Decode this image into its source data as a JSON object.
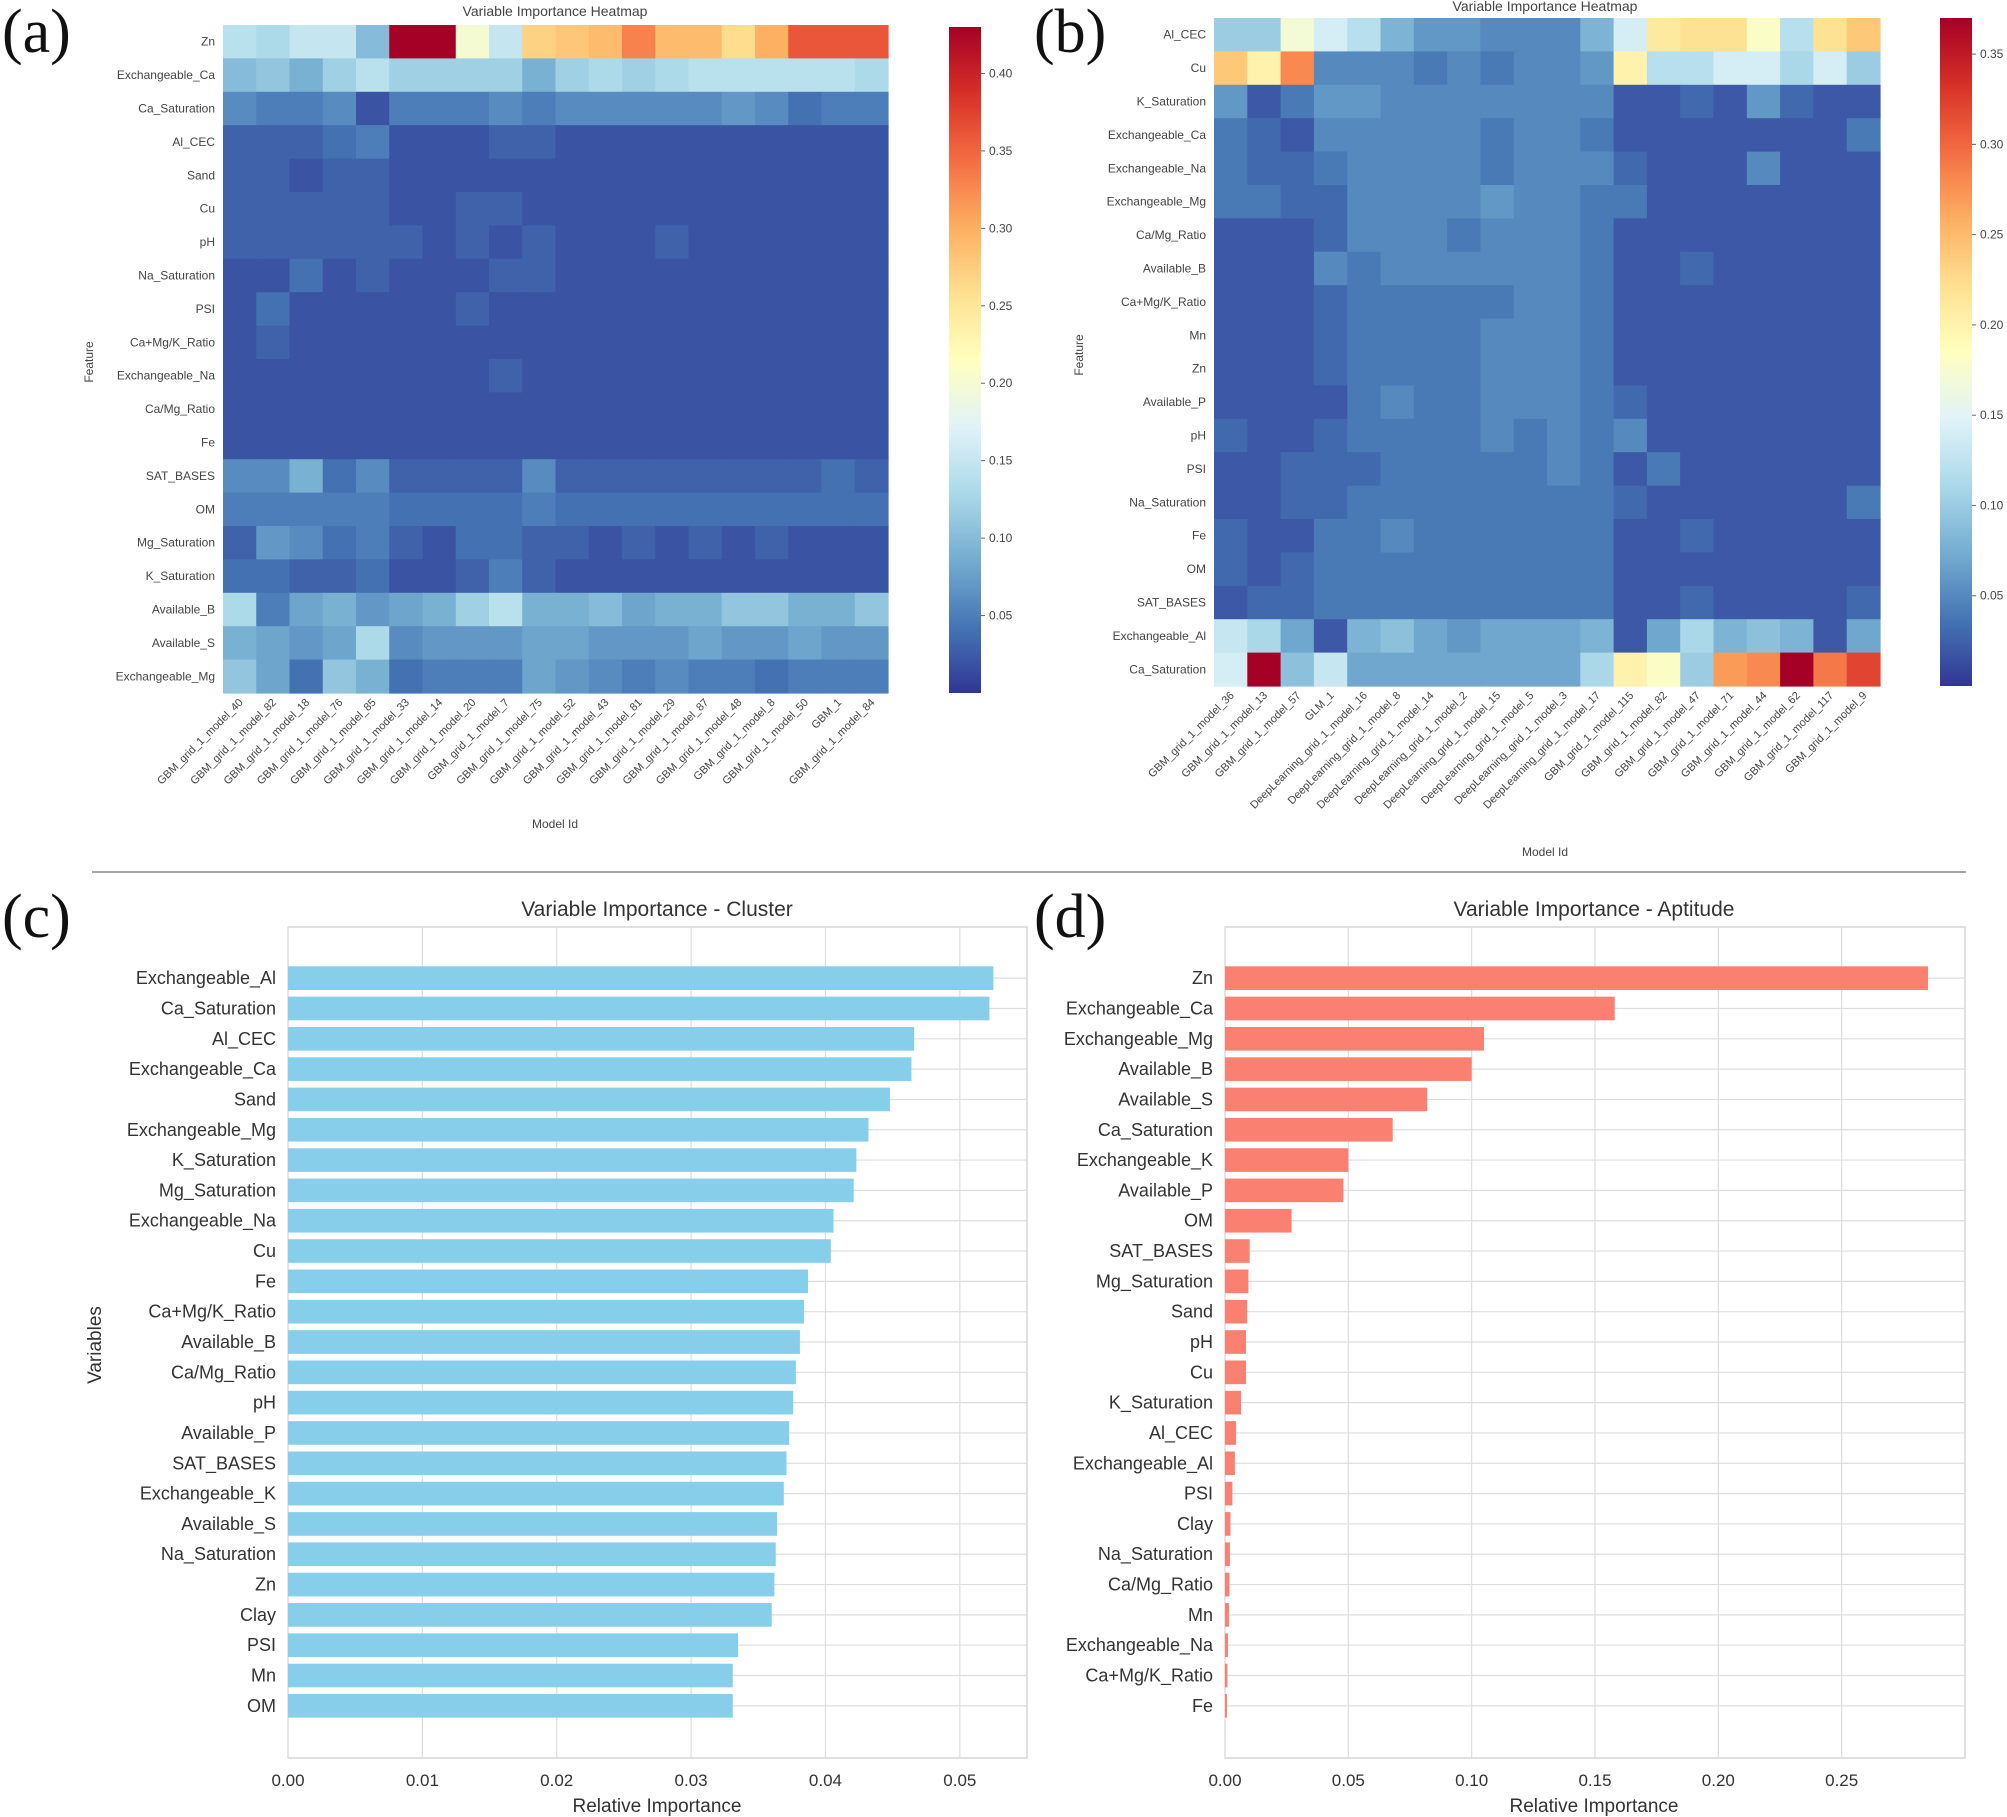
{
  "figure": {
    "panel_labels": [
      "(a)",
      "(b)",
      "(c)",
      "(d)"
    ],
    "colors": {
      "cluster_bar": "#87ceeb",
      "aptitude_bar": "#fa8072",
      "divider": "#888888",
      "heatmap_colormap": "RdYlBu_r"
    }
  },
  "chart_data": [
    {
      "type": "heatmap",
      "panel": "(a)",
      "title": "Variable Importance Heatmap",
      "xlabel": "Model Id",
      "ylabel": "Feature",
      "colorbar_ticks": [
        "0.05",
        "0.10",
        "0.15",
        "0.20",
        "0.25",
        "0.30",
        "0.35",
        "0.40"
      ],
      "colorbar_range": [
        0.0,
        0.43
      ],
      "y_categories": [
        "Zn",
        "Exchangeable_Ca",
        "Ca_Saturation",
        "Al_CEC",
        "Sand",
        "Cu",
        "pH",
        "Na_Saturation",
        "PSI",
        "Ca+Mg/K_Ratio",
        "Exchangeable_Na",
        "Ca/Mg_Ratio",
        "Fe",
        "SAT_BASES",
        "OM",
        "Mg_Saturation",
        "K_Saturation",
        "Available_B",
        "Available_S",
        "Exchangeable_Mg"
      ],
      "x_categories": [
        "GBM_grid_1_model_40",
        "GBM_grid_1_model_82",
        "GBM_grid_1_model_18",
        "GBM_grid_1_model_76",
        "GBM_grid_1_model_85",
        "GBM_grid_1_model_33",
        "GBM_grid_1_model_14",
        "GBM_grid_1_model_20",
        "GBM_grid_1_model_7",
        "GBM_grid_1_model_75",
        "GBM_grid_1_model_52",
        "GBM_grid_1_model_43",
        "GBM_grid_1_model_81",
        "GBM_grid_1_model_29",
        "GBM_grid_1_model_87",
        "GBM_grid_1_model_48",
        "GBM_grid_1_model_8",
        "GBM_grid_1_model_50",
        "GBM_1",
        "GBM_grid_1_model_84"
      ],
      "values": [
        [
          0.14,
          0.13,
          0.15,
          0.15,
          0.1,
          0.43,
          0.43,
          0.2,
          0.15,
          0.27,
          0.28,
          0.29,
          0.33,
          0.29,
          0.29,
          0.26,
          0.3,
          0.36,
          0.36,
          0.36
        ],
        [
          0.1,
          0.11,
          0.09,
          0.12,
          0.14,
          0.12,
          0.12,
          0.12,
          0.12,
          0.09,
          0.12,
          0.13,
          0.12,
          0.13,
          0.14,
          0.14,
          0.14,
          0.14,
          0.14,
          0.13
        ],
        [
          0.06,
          0.05,
          0.05,
          0.06,
          0.02,
          0.05,
          0.05,
          0.05,
          0.06,
          0.05,
          0.06,
          0.06,
          0.06,
          0.06,
          0.06,
          0.07,
          0.06,
          0.04,
          0.05,
          0.05
        ],
        [
          0.03,
          0.03,
          0.03,
          0.04,
          0.05,
          0.02,
          0.02,
          0.02,
          0.03,
          0.03,
          0.02,
          0.02,
          0.02,
          0.02,
          0.02,
          0.02,
          0.02,
          0.02,
          0.02,
          0.02
        ],
        [
          0.03,
          0.03,
          0.02,
          0.03,
          0.03,
          0.02,
          0.02,
          0.02,
          0.02,
          0.02,
          0.02,
          0.02,
          0.02,
          0.02,
          0.02,
          0.02,
          0.02,
          0.02,
          0.02,
          0.02
        ],
        [
          0.03,
          0.03,
          0.03,
          0.03,
          0.03,
          0.02,
          0.02,
          0.03,
          0.03,
          0.02,
          0.02,
          0.02,
          0.02,
          0.02,
          0.02,
          0.02,
          0.02,
          0.02,
          0.02,
          0.02
        ],
        [
          0.03,
          0.03,
          0.03,
          0.03,
          0.03,
          0.03,
          0.02,
          0.03,
          0.02,
          0.03,
          0.02,
          0.02,
          0.02,
          0.03,
          0.02,
          0.02,
          0.02,
          0.02,
          0.02,
          0.02
        ],
        [
          0.02,
          0.02,
          0.04,
          0.02,
          0.03,
          0.02,
          0.02,
          0.02,
          0.03,
          0.03,
          0.02,
          0.02,
          0.02,
          0.02,
          0.02,
          0.02,
          0.02,
          0.02,
          0.02,
          0.02
        ],
        [
          0.02,
          0.04,
          0.02,
          0.02,
          0.02,
          0.02,
          0.02,
          0.03,
          0.02,
          0.02,
          0.02,
          0.02,
          0.02,
          0.02,
          0.02,
          0.02,
          0.02,
          0.02,
          0.02,
          0.02
        ],
        [
          0.02,
          0.03,
          0.02,
          0.02,
          0.02,
          0.02,
          0.02,
          0.02,
          0.02,
          0.02,
          0.02,
          0.02,
          0.02,
          0.02,
          0.02,
          0.02,
          0.02,
          0.02,
          0.02,
          0.02
        ],
        [
          0.02,
          0.02,
          0.02,
          0.02,
          0.02,
          0.02,
          0.02,
          0.02,
          0.03,
          0.02,
          0.02,
          0.02,
          0.02,
          0.02,
          0.02,
          0.02,
          0.02,
          0.02,
          0.02,
          0.02
        ],
        [
          0.02,
          0.02,
          0.02,
          0.02,
          0.02,
          0.02,
          0.02,
          0.02,
          0.02,
          0.02,
          0.02,
          0.02,
          0.02,
          0.02,
          0.02,
          0.02,
          0.02,
          0.02,
          0.02,
          0.02
        ],
        [
          0.02,
          0.02,
          0.02,
          0.02,
          0.02,
          0.02,
          0.02,
          0.02,
          0.02,
          0.02,
          0.02,
          0.02,
          0.02,
          0.02,
          0.02,
          0.02,
          0.02,
          0.02,
          0.02,
          0.02
        ],
        [
          0.06,
          0.06,
          0.09,
          0.04,
          0.06,
          0.03,
          0.03,
          0.03,
          0.03,
          0.06,
          0.03,
          0.03,
          0.03,
          0.03,
          0.03,
          0.03,
          0.03,
          0.03,
          0.04,
          0.03
        ],
        [
          0.05,
          0.05,
          0.05,
          0.05,
          0.05,
          0.04,
          0.04,
          0.04,
          0.04,
          0.05,
          0.04,
          0.04,
          0.04,
          0.04,
          0.04,
          0.04,
          0.04,
          0.04,
          0.04,
          0.04
        ],
        [
          0.03,
          0.07,
          0.06,
          0.04,
          0.05,
          0.03,
          0.02,
          0.04,
          0.04,
          0.03,
          0.03,
          0.02,
          0.03,
          0.02,
          0.03,
          0.02,
          0.03,
          0.02,
          0.02,
          0.02
        ],
        [
          0.04,
          0.04,
          0.03,
          0.03,
          0.04,
          0.02,
          0.02,
          0.03,
          0.05,
          0.03,
          0.02,
          0.02,
          0.02,
          0.02,
          0.02,
          0.02,
          0.02,
          0.02,
          0.02,
          0.02
        ],
        [
          0.13,
          0.05,
          0.08,
          0.09,
          0.07,
          0.08,
          0.09,
          0.12,
          0.14,
          0.09,
          0.09,
          0.1,
          0.08,
          0.09,
          0.09,
          0.11,
          0.11,
          0.09,
          0.09,
          0.11
        ],
        [
          0.09,
          0.08,
          0.07,
          0.08,
          0.13,
          0.06,
          0.07,
          0.07,
          0.07,
          0.08,
          0.08,
          0.07,
          0.07,
          0.07,
          0.08,
          0.07,
          0.07,
          0.08,
          0.07,
          0.07
        ],
        [
          0.11,
          0.08,
          0.04,
          0.11,
          0.09,
          0.04,
          0.05,
          0.05,
          0.05,
          0.08,
          0.07,
          0.06,
          0.05,
          0.06,
          0.05,
          0.05,
          0.04,
          0.05,
          0.05,
          0.05
        ]
      ]
    },
    {
      "type": "heatmap",
      "panel": "(b)",
      "title": "Variable Importance Heatmap",
      "xlabel": "Model Id",
      "ylabel": "Feature",
      "colorbar_ticks": [
        "0.05",
        "0.10",
        "0.15",
        "0.20",
        "0.25",
        "0.30",
        "0.35"
      ],
      "colorbar_range": [
        0.0,
        0.37
      ],
      "y_categories": [
        "Al_CEC",
        "Cu",
        "K_Saturation",
        "Exchangeable_Ca",
        "Exchangeable_Na",
        "Exchangeable_Mg",
        "Ca/Mg_Ratio",
        "Available_B",
        "Ca+Mg/K_Ratio",
        "Mn",
        "Zn",
        "Available_P",
        "pH",
        "PSI",
        "Na_Saturation",
        "Fe",
        "OM",
        "SAT_BASES",
        "Exchangeable_Al",
        "Ca_Saturation"
      ],
      "x_categories": [
        "GBM_grid_1_model_36",
        "GBM_grid_1_model_13",
        "GBM_grid_1_model_57",
        "GLM_1",
        "DeepLearning_grid_1_model_16",
        "DeepLearning_grid_1_model_8",
        "DeepLearning_grid_1_model_14",
        "DeepLearning_grid_1_model_2",
        "DeepLearning_grid_1_model_15",
        "DeepLearning_grid_1_model_5",
        "DeepLearning_grid_1_model_3",
        "DeepLearning_grid_1_model_17",
        "GBM_grid_1_model_115",
        "GBM_grid_1_model_82",
        "GBM_grid_1_model_47",
        "GBM_grid_1_model_71",
        "GBM_grid_1_model_44",
        "GBM_grid_1_model_62",
        "GBM_grid_1_model_117",
        "GBM_grid_1_model_9"
      ],
      "values": [
        [
          0.1,
          0.1,
          0.17,
          0.14,
          0.12,
          0.08,
          0.06,
          0.06,
          0.05,
          0.05,
          0.05,
          0.08,
          0.14,
          0.21,
          0.22,
          0.22,
          0.18,
          0.12,
          0.22,
          0.24
        ],
        [
          0.24,
          0.2,
          0.28,
          0.05,
          0.05,
          0.05,
          0.04,
          0.05,
          0.04,
          0.05,
          0.05,
          0.06,
          0.2,
          0.12,
          0.12,
          0.14,
          0.14,
          0.11,
          0.14,
          0.1
        ],
        [
          0.06,
          0.02,
          0.04,
          0.06,
          0.06,
          0.05,
          0.05,
          0.05,
          0.05,
          0.05,
          0.05,
          0.05,
          0.02,
          0.02,
          0.03,
          0.02,
          0.06,
          0.03,
          0.02,
          0.02
        ],
        [
          0.04,
          0.03,
          0.02,
          0.05,
          0.05,
          0.05,
          0.05,
          0.05,
          0.04,
          0.05,
          0.05,
          0.04,
          0.02,
          0.02,
          0.02,
          0.02,
          0.02,
          0.02,
          0.02,
          0.04
        ],
        [
          0.04,
          0.03,
          0.03,
          0.04,
          0.05,
          0.05,
          0.05,
          0.05,
          0.04,
          0.05,
          0.05,
          0.05,
          0.03,
          0.02,
          0.02,
          0.02,
          0.05,
          0.02,
          0.02,
          0.02
        ],
        [
          0.04,
          0.04,
          0.03,
          0.03,
          0.05,
          0.05,
          0.05,
          0.05,
          0.06,
          0.05,
          0.05,
          0.04,
          0.04,
          0.02,
          0.02,
          0.02,
          0.02,
          0.02,
          0.02,
          0.02
        ],
        [
          0.02,
          0.02,
          0.02,
          0.03,
          0.05,
          0.05,
          0.05,
          0.04,
          0.05,
          0.05,
          0.05,
          0.04,
          0.02,
          0.02,
          0.02,
          0.02,
          0.02,
          0.02,
          0.02,
          0.02
        ],
        [
          0.02,
          0.02,
          0.02,
          0.05,
          0.04,
          0.05,
          0.05,
          0.05,
          0.05,
          0.05,
          0.05,
          0.04,
          0.02,
          0.02,
          0.03,
          0.02,
          0.02,
          0.02,
          0.02,
          0.02
        ],
        [
          0.02,
          0.02,
          0.02,
          0.03,
          0.04,
          0.04,
          0.04,
          0.04,
          0.04,
          0.05,
          0.05,
          0.04,
          0.02,
          0.02,
          0.02,
          0.02,
          0.02,
          0.02,
          0.02,
          0.02
        ],
        [
          0.02,
          0.02,
          0.02,
          0.03,
          0.04,
          0.04,
          0.04,
          0.04,
          0.05,
          0.05,
          0.05,
          0.04,
          0.02,
          0.02,
          0.02,
          0.02,
          0.02,
          0.02,
          0.02,
          0.02
        ],
        [
          0.02,
          0.02,
          0.02,
          0.03,
          0.04,
          0.04,
          0.04,
          0.04,
          0.05,
          0.05,
          0.05,
          0.04,
          0.02,
          0.02,
          0.02,
          0.02,
          0.02,
          0.02,
          0.02,
          0.02
        ],
        [
          0.02,
          0.02,
          0.02,
          0.02,
          0.04,
          0.05,
          0.04,
          0.04,
          0.05,
          0.05,
          0.05,
          0.04,
          0.03,
          0.02,
          0.02,
          0.02,
          0.02,
          0.02,
          0.02,
          0.02
        ],
        [
          0.03,
          0.02,
          0.02,
          0.03,
          0.04,
          0.04,
          0.04,
          0.04,
          0.05,
          0.04,
          0.05,
          0.04,
          0.05,
          0.02,
          0.02,
          0.02,
          0.02,
          0.02,
          0.02,
          0.02
        ],
        [
          0.02,
          0.02,
          0.03,
          0.03,
          0.03,
          0.04,
          0.04,
          0.04,
          0.04,
          0.04,
          0.05,
          0.04,
          0.02,
          0.04,
          0.02,
          0.02,
          0.02,
          0.02,
          0.02,
          0.02
        ],
        [
          0.02,
          0.02,
          0.03,
          0.03,
          0.04,
          0.04,
          0.04,
          0.04,
          0.04,
          0.04,
          0.04,
          0.04,
          0.03,
          0.02,
          0.02,
          0.02,
          0.02,
          0.02,
          0.02,
          0.04
        ],
        [
          0.03,
          0.02,
          0.02,
          0.04,
          0.04,
          0.05,
          0.04,
          0.04,
          0.04,
          0.04,
          0.04,
          0.04,
          0.02,
          0.02,
          0.03,
          0.02,
          0.02,
          0.02,
          0.02,
          0.02
        ],
        [
          0.03,
          0.02,
          0.03,
          0.04,
          0.04,
          0.04,
          0.04,
          0.04,
          0.04,
          0.04,
          0.04,
          0.04,
          0.02,
          0.02,
          0.02,
          0.02,
          0.02,
          0.02,
          0.02,
          0.02
        ],
        [
          0.02,
          0.03,
          0.03,
          0.04,
          0.04,
          0.04,
          0.04,
          0.04,
          0.04,
          0.04,
          0.04,
          0.04,
          0.02,
          0.02,
          0.03,
          0.02,
          0.02,
          0.02,
          0.02,
          0.03
        ],
        [
          0.13,
          0.11,
          0.07,
          0.02,
          0.08,
          0.09,
          0.07,
          0.06,
          0.07,
          0.07,
          0.07,
          0.08,
          0.02,
          0.07,
          0.11,
          0.08,
          0.09,
          0.08,
          0.02,
          0.07
        ],
        [
          0.14,
          0.37,
          0.09,
          0.13,
          0.07,
          0.07,
          0.07,
          0.07,
          0.07,
          0.07,
          0.07,
          0.11,
          0.2,
          0.18,
          0.1,
          0.27,
          0.28,
          0.37,
          0.29,
          0.32
        ]
      ]
    },
    {
      "type": "bar",
      "orientation": "horizontal",
      "panel": "(c)",
      "title": "Variable Importance - Cluster",
      "xlabel": "Relative Importance",
      "ylabel": "Variables",
      "xlim": [
        0,
        0.055
      ],
      "xticks": [
        "0.00",
        "0.01",
        "0.02",
        "0.03",
        "0.04",
        "0.05"
      ],
      "grid": true,
      "color": "#87ceeb",
      "categories": [
        "Exchangeable_Al",
        "Ca_Saturation",
        "Al_CEC",
        "Exchangeable_Ca",
        "Sand",
        "Exchangeable_Mg",
        "K_Saturation",
        "Mg_Saturation",
        "Exchangeable_Na",
        "Cu",
        "Fe",
        "Ca+Mg/K_Ratio",
        "Available_B",
        "Ca/Mg_Ratio",
        "pH",
        "Available_P",
        "SAT_BASES",
        "Exchangeable_K",
        "Available_S",
        "Na_Saturation",
        "Zn",
        "Clay",
        "PSI",
        "Mn",
        "OM"
      ],
      "values": [
        0.0525,
        0.0522,
        0.0466,
        0.0464,
        0.0448,
        0.0432,
        0.0423,
        0.0421,
        0.0406,
        0.0404,
        0.0387,
        0.0384,
        0.0381,
        0.0378,
        0.0376,
        0.0373,
        0.0371,
        0.0369,
        0.0364,
        0.0363,
        0.0362,
        0.036,
        0.0335,
        0.0331,
        0.0331
      ]
    },
    {
      "type": "bar",
      "orientation": "horizontal",
      "panel": "(d)",
      "title": "Variable Importance - Aptitude",
      "xlabel": "Relative Importance",
      "ylabel": "",
      "xlim": [
        0,
        0.3
      ],
      "xticks": [
        "0.00",
        "0.05",
        "0.10",
        "0.15",
        "0.20",
        "0.25"
      ],
      "grid": true,
      "color": "#fa8072",
      "categories": [
        "Zn",
        "Exchangeable_Ca",
        "Exchangeable_Mg",
        "Available_B",
        "Available_S",
        "Ca_Saturation",
        "Exchangeable_K",
        "Available_P",
        "OM",
        "SAT_BASES",
        "Mg_Saturation",
        "Sand",
        "pH",
        "Cu",
        "K_Saturation",
        "Al_CEC",
        "Exchangeable_Al",
        "PSI",
        "Clay",
        "Na_Saturation",
        "Ca/Mg_Ratio",
        "Mn",
        "Exchangeable_Na",
        "Ca+Mg/K_Ratio",
        "Fe"
      ],
      "values": [
        0.285,
        0.158,
        0.105,
        0.1,
        0.082,
        0.068,
        0.05,
        0.048,
        0.027,
        0.01,
        0.0095,
        0.009,
        0.0085,
        0.0085,
        0.0065,
        0.0045,
        0.004,
        0.003,
        0.0022,
        0.002,
        0.0018,
        0.0016,
        0.0012,
        0.001,
        0.0008
      ]
    }
  ]
}
